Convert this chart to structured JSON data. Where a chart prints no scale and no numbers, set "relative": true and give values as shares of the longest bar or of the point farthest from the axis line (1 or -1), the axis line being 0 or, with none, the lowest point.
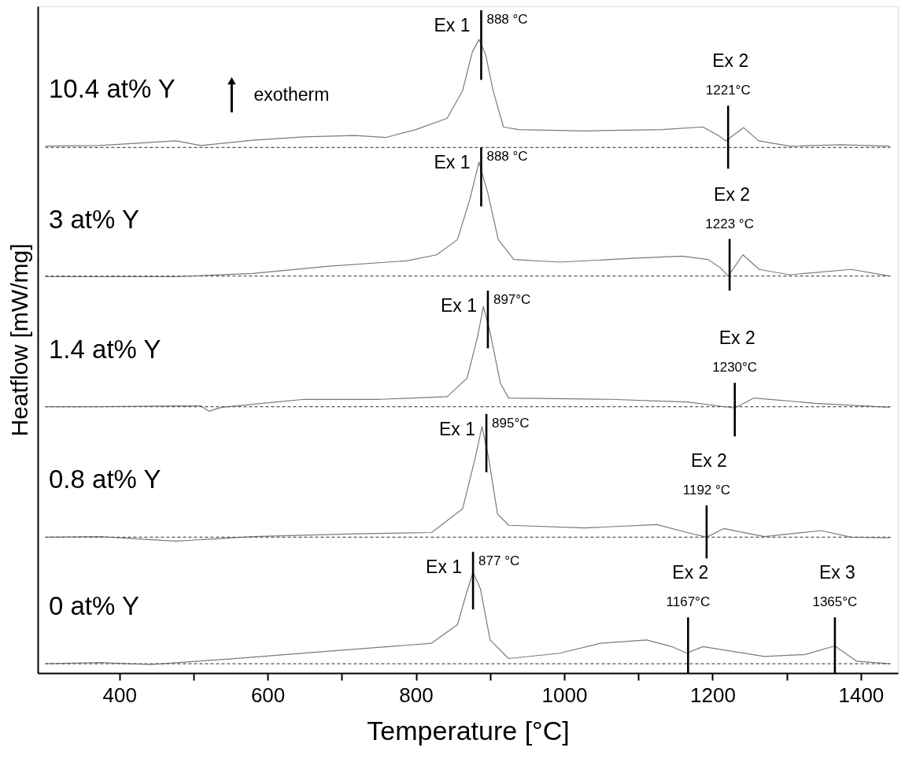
{
  "chart_data": {
    "type": "line",
    "relative": true,
    "xlabel": "Temperature [°C]",
    "ylabel": "Heatflow [mW/mg]",
    "xlim": [
      290,
      1450
    ],
    "xticks": [
      400,
      {
        "value": 500,
        "label": null
      },
      600,
      {
        "value": 700,
        "label": null
      },
      800,
      {
        "value": 900,
        "label": null
      },
      1000,
      {
        "value": 1100,
        "label": null
      },
      1200,
      {
        "value": 1300,
        "label": null
      },
      1400
    ],
    "legend": false,
    "grid": false,
    "series": [
      {
        "name": "10.4 at% Y",
        "color": "#7a7a7a",
        "x": [
          300,
          373,
          476,
          510,
          580,
          649,
          718,
          759,
          800,
          842,
          863,
          876,
          885,
          894,
          904,
          918,
          938,
          1028,
          1132,
          1187,
          1208,
          1218,
          1242,
          1262,
          1304,
          1373,
          1439
        ],
        "values": [
          0.795,
          0.796,
          0.803,
          0.796,
          0.804,
          0.809,
          0.811,
          0.808,
          0.82,
          0.837,
          0.879,
          0.937,
          0.956,
          0.933,
          0.879,
          0.824,
          0.82,
          0.818,
          0.82,
          0.824,
          0.811,
          0.803,
          0.823,
          0.803,
          0.795,
          0.797,
          0.795
        ]
      },
      {
        "name": "3 at% Y",
        "color": "#7a7a7a",
        "x": [
          300,
          373,
          476,
          580,
          683,
          787,
          828,
          856,
          873,
          885,
          897,
          911,
          932,
          994,
          1097,
          1159,
          1194,
          1211,
          1221,
          1241,
          1263,
          1304,
          1387,
          1439
        ],
        "values": [
          0.598,
          0.598,
          0.598,
          0.603,
          0.614,
          0.622,
          0.631,
          0.654,
          0.716,
          0.771,
          0.724,
          0.654,
          0.624,
          0.62,
          0.626,
          0.629,
          0.624,
          0.611,
          0.599,
          0.631,
          0.609,
          0.601,
          0.609,
          0.599
        ]
      },
      {
        "name": "1.4 at% Y",
        "color": "#7a7a7a",
        "x": [
          300,
          373,
          476,
          510,
          521,
          538,
          649,
          752,
          842,
          869,
          883,
          891,
          900,
          914,
          925,
          1063,
          1166,
          1230,
          1256,
          1339,
          1439
        ],
        "values": [
          0.402,
          0.402,
          0.403,
          0.403,
          0.395,
          0.401,
          0.413,
          0.413,
          0.417,
          0.445,
          0.507,
          0.553,
          0.514,
          0.437,
          0.415,
          0.413,
          0.409,
          0.4,
          0.415,
          0.407,
          0.401
        ]
      },
      {
        "name": "0.8 at% Y",
        "color": "#7a7a7a",
        "x": [
          300,
          373,
          476,
          580,
          718,
          821,
          863,
          880,
          889,
          898,
          910,
          925,
          1028,
          1125,
          1166,
          1192,
          1215,
          1270,
          1346,
          1387,
          1439
        ],
        "values": [
          0.205,
          0.206,
          0.199,
          0.206,
          0.21,
          0.212,
          0.248,
          0.325,
          0.372,
          0.325,
          0.24,
          0.223,
          0.219,
          0.224,
          0.212,
          0.205,
          0.218,
          0.206,
          0.215,
          0.205,
          0.204
        ]
      },
      {
        "name": "0 at% Y",
        "color": "#7a7a7a",
        "x": [
          300,
          373,
          442,
          545,
          683,
          821,
          856,
          868,
          877,
          887,
          900,
          925,
          994,
          1049,
          1111,
          1145,
          1165,
          1187,
          1270,
          1325,
          1365,
          1394,
          1439
        ],
        "values": [
          0.014,
          0.016,
          0.013,
          0.021,
          0.033,
          0.045,
          0.073,
          0.12,
          0.152,
          0.127,
          0.05,
          0.022,
          0.03,
          0.045,
          0.05,
          0.04,
          0.03,
          0.04,
          0.025,
          0.028,
          0.041,
          0.018,
          0.014
        ]
      },
      {
        "color": "#555555",
        "line_style": "dashed",
        "x": [
          300,
          1440
        ],
        "values": [
          0.793,
          0.793
        ]
      },
      {
        "color": "#555555",
        "line_style": "dashed",
        "x": [
          300,
          1440
        ],
        "values": [
          0.599,
          0.599
        ]
      },
      {
        "color": "#555555",
        "line_style": "dashed",
        "x": [
          300,
          1440
        ],
        "values": [
          0.402,
          0.402
        ]
      },
      {
        "color": "#555555",
        "line_style": "dashed",
        "x": [
          300,
          1440
        ],
        "values": [
          0.205,
          0.205
        ]
      },
      {
        "color": "#555555",
        "line_style": "dashed",
        "x": [
          300,
          1440
        ],
        "values": [
          0.014,
          0.014
        ]
      },
      {
        "color": "#000000",
        "x": [
          888,
          888
        ],
        "values": [
          0.895,
          1.0
        ]
      },
      {
        "color": "#000000",
        "x": [
          1221,
          1221
        ],
        "values": [
          0.761,
          0.856
        ]
      },
      {
        "color": "#000000",
        "x": [
          888,
          888
        ],
        "values": [
          0.704,
          0.793
        ]
      },
      {
        "color": "#000000",
        "x": [
          1223,
          1223
        ],
        "values": [
          0.577,
          0.655
        ]
      },
      {
        "color": "#000000",
        "x": [
          897,
          897
        ],
        "values": [
          0.49,
          0.577
        ]
      },
      {
        "color": "#000000",
        "x": [
          1230,
          1230
        ],
        "values": [
          0.357,
          0.438
        ]
      },
      {
        "color": "#000000",
        "x": [
          895,
          895
        ],
        "values": [
          0.303,
          0.391
        ]
      },
      {
        "color": "#000000",
        "x": [
          1192,
          1192
        ],
        "values": [
          0.173,
          0.253
        ]
      },
      {
        "color": "#000000",
        "x": [
          877,
          877
        ],
        "values": [
          0.096,
          0.183
        ]
      },
      {
        "color": "#000000",
        "x": [
          1167,
          1167
        ],
        "values": [
          0.0,
          0.084
        ]
      },
      {
        "color": "#000000",
        "x": [
          1365,
          1365
        ],
        "values": [
          0.0,
          0.084
        ]
      }
    ],
    "annotations": [
      {
        "text": "Ex 1",
        "x": 888,
        "y": 1.0
      },
      {
        "text": "888 °C",
        "x": 888,
        "y": 1.0
      },
      {
        "text": "Ex 2",
        "x": 1221,
        "y": 0.856
      },
      {
        "text": "1221°C",
        "x": 1221,
        "y": 0.856
      },
      {
        "text": "Ex 1",
        "x": 888,
        "y": 0.793
      },
      {
        "text": "888 °C",
        "x": 888,
        "y": 0.793
      },
      {
        "text": "Ex 2",
        "x": 1223,
        "y": 0.655
      },
      {
        "text": "1223 °C",
        "x": 1223,
        "y": 0.655
      },
      {
        "text": "Ex 1",
        "x": 897,
        "y": 0.577
      },
      {
        "text": "897°C",
        "x": 897,
        "y": 0.577
      },
      {
        "text": "Ex 2",
        "x": 1230,
        "y": 0.438
      },
      {
        "text": "1230°C",
        "x": 1230,
        "y": 0.438
      },
      {
        "text": "Ex 1",
        "x": 895,
        "y": 0.391
      },
      {
        "text": "895°C",
        "x": 895,
        "y": 0.391
      },
      {
        "text": "Ex 2",
        "x": 1192,
        "y": 0.253
      },
      {
        "text": "1192 °C",
        "x": 1192,
        "y": 0.253
      },
      {
        "text": "Ex 1",
        "x": 877,
        "y": 0.183
      },
      {
        "text": "877 °C",
        "x": 877,
        "y": 0.183
      },
      {
        "text": "Ex 2",
        "x": 1167,
        "y": 0.084
      },
      {
        "text": "1167°C",
        "x": 1167,
        "y": 0.084
      },
      {
        "text": "Ex 3",
        "x": 1365,
        "y": 0.084
      },
      {
        "text": "1365°C",
        "x": 1365,
        "y": 0.084
      },
      "exotherm"
    ]
  }
}
